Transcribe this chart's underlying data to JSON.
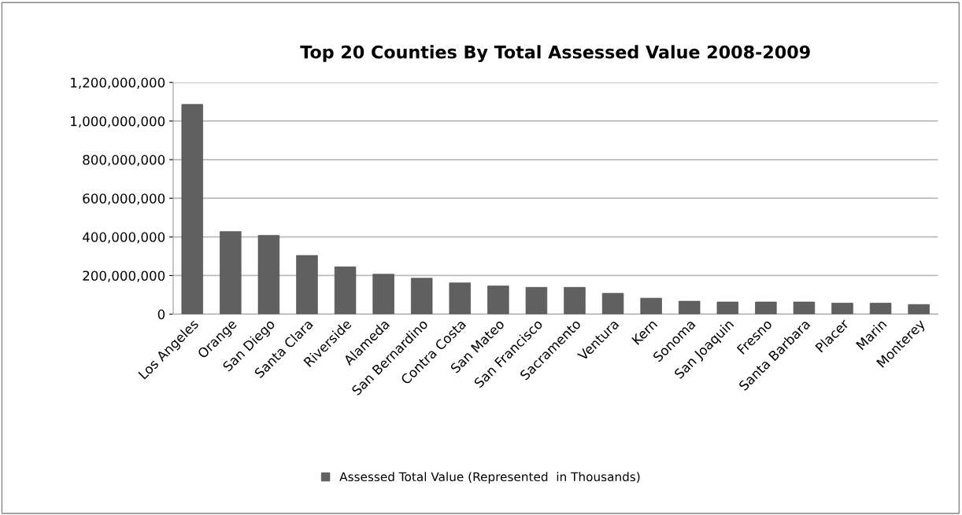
{
  "chart_data": {
    "type": "bar",
    "title": "Top 20 Counties By Total Assessed Value 2008-2009",
    "categories": [
      "Los Angeles",
      "Orange",
      "San Diego",
      "Santa Clara",
      "Riverside",
      "Alameda",
      "San Bernardino",
      "Contra Costa",
      "San Mateo",
      "San Francisco",
      "Sacramento",
      "Ventura",
      "Kern",
      "Sonoma",
      "San Joaquin",
      "Fresno",
      "Santa Barbara",
      "Placer",
      "Marin",
      "Monterey"
    ],
    "series": [
      {
        "name": "Assessed Total Value (Represented  in Thousands)",
        "color": "#606060",
        "values": [
          1086000000,
          428000000,
          408000000,
          304000000,
          245000000,
          207000000,
          186000000,
          162000000,
          146000000,
          139000000,
          139000000,
          108000000,
          83000000,
          67000000,
          63000000,
          63000000,
          63000000,
          57000000,
          57000000,
          50000000
        ]
      }
    ],
    "ylim": [
      0,
      1200000000
    ],
    "yticks": [
      {
        "value": 0,
        "label": "0"
      },
      {
        "value": 200000000,
        "label": "200,000,000"
      },
      {
        "value": 400000000,
        "label": "400,000,000"
      },
      {
        "value": 600000000,
        "label": "600,000,000"
      },
      {
        "value": 800000000,
        "label": "800,000,000"
      },
      {
        "value": 1000000000,
        "label": "1,000,000,000"
      },
      {
        "value": 1200000000,
        "label": "1,200,000,000"
      }
    ],
    "grid": "y",
    "legend": "bottom"
  }
}
